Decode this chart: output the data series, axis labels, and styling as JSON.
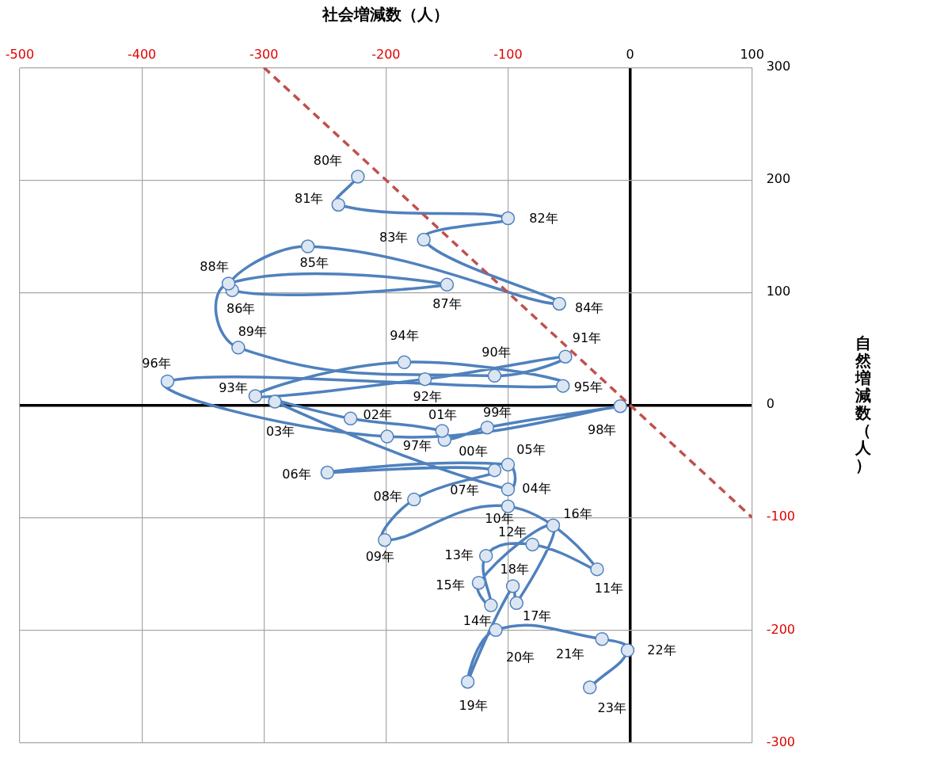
{
  "chart_data": {
    "type": "line",
    "xlabel": "社会増減数（人）",
    "ylabel": "自然増減数（人）",
    "xlim": [
      -500,
      100
    ],
    "xticks": [
      -500,
      -400,
      -300,
      -200,
      -100,
      0,
      100
    ],
    "ylim": [
      -300,
      300
    ],
    "yticks": [
      -300,
      -200,
      -100,
      0,
      100,
      200,
      300
    ],
    "grid": true,
    "series": [
      {
        "color": "#c0504d",
        "line_style": "dashed",
        "marker": "none",
        "x": [
          -300,
          100
        ],
        "values": [
          300,
          -100
        ]
      },
      {
        "color": "#4f81bd",
        "line_style": "solid",
        "marker": "circle",
        "x": [
          -223,
          -239,
          -100,
          -169,
          -58,
          -264,
          -326,
          -150,
          -329,
          -321,
          -111,
          -53,
          -168,
          -307,
          -185,
          -55,
          -379,
          -199,
          -8,
          -117,
          -152,
          -154,
          -229,
          -291,
          -100,
          -100,
          -248,
          -111,
          -177,
          -201,
          -100,
          -27,
          -80,
          -118,
          -114,
          -124,
          -63,
          -93,
          -96,
          -133,
          -110,
          -23,
          -2,
          -33
        ],
        "values": [
          203,
          178,
          166,
          147,
          90,
          141,
          102,
          107,
          108,
          51,
          26,
          43,
          23,
          8,
          38,
          17,
          21,
          -28,
          -1,
          -20,
          -31,
          -23,
          -12,
          3,
          -75,
          -53,
          -60,
          -58,
          -84,
          -120,
          -90,
          -146,
          -124,
          -134,
          -178,
          -158,
          -107,
          -176,
          -161,
          -246,
          -200,
          -208,
          -218,
          -251
        ]
      }
    ],
    "annotations": [
      {
        "text": "80年",
        "x": -223,
        "y": 203
      },
      {
        "text": "81年",
        "x": -239,
        "y": 178
      },
      {
        "text": "82年",
        "x": -100,
        "y": 166
      },
      {
        "text": "83年",
        "x": -169,
        "y": 147
      },
      {
        "text": "84年",
        "x": -58,
        "y": 90
      },
      {
        "text": "85年",
        "x": -264,
        "y": 141
      },
      {
        "text": "86年",
        "x": -326,
        "y": 102
      },
      {
        "text": "87年",
        "x": -150,
        "y": 107
      },
      {
        "text": "88年",
        "x": -329,
        "y": 108
      },
      {
        "text": "89年",
        "x": -321,
        "y": 51
      },
      {
        "text": "90年",
        "x": -111,
        "y": 26
      },
      {
        "text": "91年",
        "x": -53,
        "y": 43
      },
      {
        "text": "92年",
        "x": -168,
        "y": 23
      },
      {
        "text": "93年",
        "x": -307,
        "y": 8
      },
      {
        "text": "94年",
        "x": -185,
        "y": 38
      },
      {
        "text": "95年",
        "x": -55,
        "y": 17
      },
      {
        "text": "96年",
        "x": -379,
        "y": 21
      },
      {
        "text": "97年",
        "x": -199,
        "y": -28
      },
      {
        "text": "98年",
        "x": -8,
        "y": -1
      },
      {
        "text": "99年",
        "x": -117,
        "y": -20
      },
      {
        "text": "00年",
        "x": -152,
        "y": -31
      },
      {
        "text": "01年",
        "x": -154,
        "y": -23
      },
      {
        "text": "02年",
        "x": -229,
        "y": -12
      },
      {
        "text": "03年",
        "x": -291,
        "y": 3
      },
      {
        "text": "04年",
        "x": -100,
        "y": -75
      },
      {
        "text": "05年",
        "x": -100,
        "y": -53
      },
      {
        "text": "06年",
        "x": -248,
        "y": -60
      },
      {
        "text": "07年",
        "x": -111,
        "y": -58
      },
      {
        "text": "08年",
        "x": -177,
        "y": -84
      },
      {
        "text": "09年",
        "x": -201,
        "y": -120
      },
      {
        "text": "10年",
        "x": -100,
        "y": -90
      },
      {
        "text": "11年",
        "x": -27,
        "y": -146
      },
      {
        "text": "12年",
        "x": -80,
        "y": -124
      },
      {
        "text": "13年",
        "x": -118,
        "y": -134
      },
      {
        "text": "14年",
        "x": -114,
        "y": -178
      },
      {
        "text": "15年",
        "x": -124,
        "y": -158
      },
      {
        "text": "16年",
        "x": -63,
        "y": -107
      },
      {
        "text": "17年",
        "x": -93,
        "y": -176
      },
      {
        "text": "18年",
        "x": -96,
        "y": -161
      },
      {
        "text": "19年",
        "x": -133,
        "y": -246
      },
      {
        "text": "20年",
        "x": -110,
        "y": -200
      },
      {
        "text": "21年",
        "x": -23,
        "y": -208
      },
      {
        "text": "22年",
        "x": -2,
        "y": -218
      },
      {
        "text": "23年",
        "x": -33,
        "y": -251
      }
    ]
  }
}
